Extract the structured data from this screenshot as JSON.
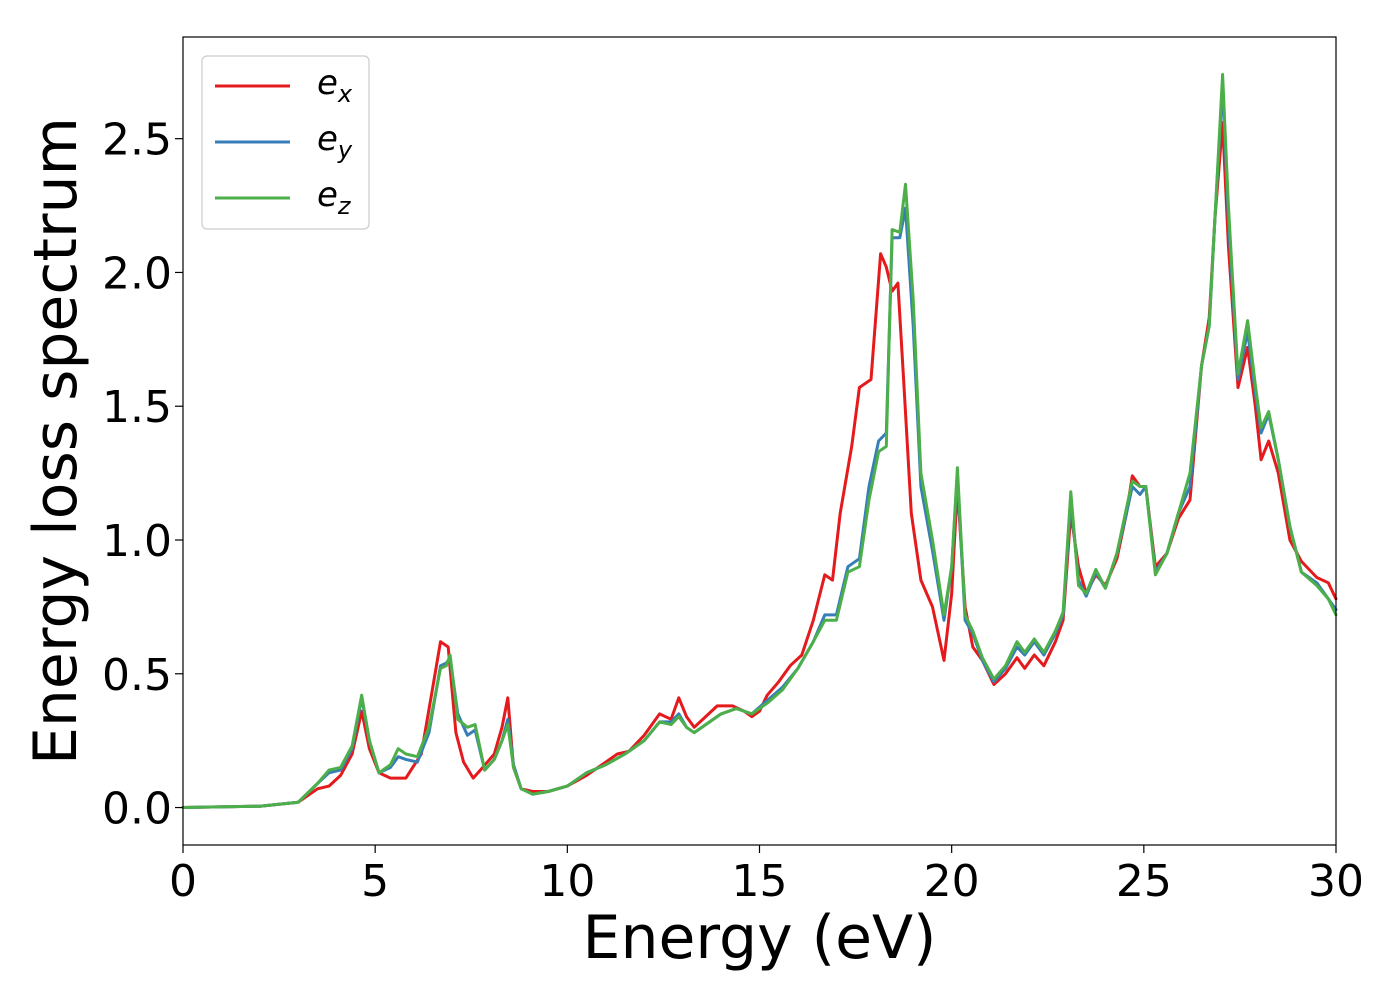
{
  "chart_data": {
    "type": "line",
    "title": "",
    "xlabel": "Energy (eV)",
    "ylabel": "Energy loss spectrum",
    "xlim": [
      0,
      30
    ],
    "ylim": [
      -0.14,
      2.88
    ],
    "xticks": [
      0,
      5,
      10,
      15,
      20,
      25,
      30
    ],
    "xtick_labels": [
      "0",
      "5",
      "10",
      "15",
      "20",
      "25",
      "30"
    ],
    "yticks": [
      0.0,
      0.5,
      1.0,
      1.5,
      2.0,
      2.5
    ],
    "ytick_labels": [
      "0.0",
      "0.5",
      "1.0",
      "1.5",
      "2.0",
      "2.5"
    ],
    "grid": false,
    "legend_position": "top-left",
    "series": [
      {
        "name": "e_x",
        "legend_base": "e",
        "legend_sub": "x",
        "color": "#e41a1c",
        "x": [
          0,
          2,
          3,
          3.5,
          3.8,
          4.1,
          4.4,
          4.65,
          4.85,
          5.1,
          5.4,
          5.8,
          6.2,
          6.5,
          6.7,
          6.9,
          7.1,
          7.3,
          7.55,
          7.8,
          8.1,
          8.3,
          8.45,
          8.6,
          8.8,
          9.1,
          9.5,
          10,
          10.5,
          11,
          11.3,
          11.6,
          12,
          12.4,
          12.7,
          12.9,
          13.1,
          13.3,
          13.6,
          13.9,
          14.3,
          14.6,
          14.8,
          15,
          15.2,
          15.5,
          15.8,
          16.1,
          16.4,
          16.7,
          16.9,
          17.1,
          17.4,
          17.6,
          17.9,
          18.15,
          18.3,
          18.45,
          18.6,
          18.75,
          18.95,
          19.2,
          19.5,
          19.8,
          20,
          20.15,
          20.35,
          20.55,
          20.8,
          21.1,
          21.4,
          21.7,
          21.9,
          22.15,
          22.4,
          22.7,
          22.9,
          23.1,
          23.3,
          23.5,
          23.75,
          24,
          24.3,
          24.55,
          24.7,
          24.9,
          25.05,
          25.3,
          25.6,
          25.9,
          26.2,
          26.5,
          26.7,
          26.85,
          27.05,
          27.2,
          27.45,
          27.7,
          27.9,
          28.05,
          28.25,
          28.5,
          28.8,
          29.1,
          29.5,
          29.8,
          30
        ],
        "y": [
          0.0,
          0.005,
          0.02,
          0.07,
          0.08,
          0.12,
          0.2,
          0.36,
          0.22,
          0.13,
          0.11,
          0.11,
          0.2,
          0.45,
          0.62,
          0.6,
          0.28,
          0.17,
          0.11,
          0.15,
          0.2,
          0.3,
          0.41,
          0.15,
          0.07,
          0.06,
          0.06,
          0.08,
          0.12,
          0.17,
          0.2,
          0.21,
          0.27,
          0.35,
          0.33,
          0.41,
          0.34,
          0.3,
          0.34,
          0.38,
          0.38,
          0.36,
          0.34,
          0.36,
          0.42,
          0.47,
          0.53,
          0.57,
          0.7,
          0.87,
          0.85,
          1.1,
          1.35,
          1.57,
          1.6,
          2.07,
          2.02,
          1.93,
          1.96,
          1.6,
          1.1,
          0.85,
          0.75,
          0.55,
          0.8,
          1.2,
          0.75,
          0.6,
          0.55,
          0.46,
          0.5,
          0.56,
          0.52,
          0.57,
          0.53,
          0.62,
          0.7,
          1.1,
          0.9,
          0.8,
          0.87,
          0.83,
          0.93,
          1.1,
          1.24,
          1.2,
          1.2,
          0.9,
          0.95,
          1.08,
          1.15,
          1.65,
          1.83,
          2.2,
          2.56,
          2.1,
          1.57,
          1.72,
          1.5,
          1.3,
          1.37,
          1.25,
          1.0,
          0.92,
          0.86,
          0.84,
          0.78
        ]
      },
      {
        "name": "e_y",
        "legend_base": "e",
        "legend_sub": "y",
        "color": "#377eb8",
        "x": [
          0,
          2,
          3,
          3.5,
          3.8,
          4.1,
          4.4,
          4.65,
          4.85,
          5.1,
          5.4,
          5.6,
          5.8,
          6.1,
          6.4,
          6.7,
          6.85,
          6.95,
          7.15,
          7.4,
          7.6,
          7.85,
          8.1,
          8.3,
          8.45,
          8.6,
          8.8,
          9.1,
          9.5,
          10,
          10.5,
          11,
          11.5,
          12,
          12.4,
          12.7,
          12.9,
          13.1,
          13.3,
          13.6,
          14,
          14.4,
          14.8,
          15.2,
          15.6,
          16,
          16.4,
          16.7,
          17,
          17.3,
          17.6,
          17.85,
          18.1,
          18.3,
          18.45,
          18.65,
          18.8,
          19.0,
          19.2,
          19.5,
          19.8,
          20,
          20.15,
          20.35,
          20.55,
          20.8,
          21.1,
          21.4,
          21.7,
          21.9,
          22.15,
          22.4,
          22.7,
          22.9,
          23.1,
          23.3,
          23.5,
          23.75,
          24,
          24.3,
          24.55,
          24.7,
          24.9,
          25.05,
          25.3,
          25.6,
          25.9,
          26.2,
          26.5,
          26.7,
          26.85,
          27.05,
          27.2,
          27.45,
          27.7,
          27.9,
          28.05,
          28.25,
          28.5,
          28.8,
          29.1,
          29.5,
          29.8,
          30
        ],
        "y": [
          0.0,
          0.005,
          0.02,
          0.09,
          0.13,
          0.14,
          0.22,
          0.41,
          0.25,
          0.13,
          0.15,
          0.19,
          0.18,
          0.17,
          0.28,
          0.53,
          0.54,
          0.56,
          0.35,
          0.27,
          0.29,
          0.14,
          0.18,
          0.25,
          0.33,
          0.16,
          0.07,
          0.05,
          0.06,
          0.08,
          0.13,
          0.16,
          0.2,
          0.25,
          0.32,
          0.32,
          0.35,
          0.3,
          0.28,
          0.31,
          0.35,
          0.37,
          0.35,
          0.4,
          0.45,
          0.52,
          0.62,
          0.72,
          0.72,
          0.9,
          0.93,
          1.2,
          1.37,
          1.4,
          2.13,
          2.13,
          2.24,
          1.8,
          1.2,
          0.96,
          0.7,
          0.9,
          1.25,
          0.7,
          0.65,
          0.55,
          0.47,
          0.52,
          0.6,
          0.57,
          0.62,
          0.57,
          0.65,
          0.72,
          1.15,
          0.85,
          0.79,
          0.88,
          0.82,
          0.95,
          1.1,
          1.2,
          1.17,
          1.2,
          0.88,
          0.95,
          1.1,
          1.2,
          1.65,
          1.8,
          2.2,
          2.7,
          2.2,
          1.6,
          1.78,
          1.55,
          1.4,
          1.47,
          1.3,
          1.05,
          0.88,
          0.84,
          0.78,
          0.74
        ]
      },
      {
        "name": "e_z",
        "legend_base": "e",
        "legend_sub": "z",
        "color": "#4daf4a",
        "x": [
          0,
          2,
          3,
          3.5,
          3.8,
          4.1,
          4.4,
          4.65,
          4.85,
          5.1,
          5.4,
          5.6,
          5.8,
          6.1,
          6.4,
          6.7,
          6.85,
          6.95,
          7.15,
          7.4,
          7.6,
          7.85,
          8.1,
          8.3,
          8.45,
          8.6,
          8.8,
          9.1,
          9.5,
          10,
          10.5,
          11,
          11.5,
          12,
          12.4,
          12.7,
          12.9,
          13.1,
          13.3,
          13.6,
          14,
          14.4,
          14.8,
          15.2,
          15.6,
          16,
          16.4,
          16.7,
          17,
          17.3,
          17.6,
          17.85,
          18.1,
          18.3,
          18.45,
          18.65,
          18.8,
          19.0,
          19.2,
          19.5,
          19.8,
          20,
          20.15,
          20.35,
          20.55,
          20.8,
          21.1,
          21.4,
          21.7,
          21.9,
          22.15,
          22.4,
          22.7,
          22.9,
          23.1,
          23.3,
          23.5,
          23.75,
          24,
          24.3,
          24.55,
          24.7,
          24.9,
          25.05,
          25.3,
          25.6,
          25.9,
          26.2,
          26.5,
          26.7,
          26.85,
          27.05,
          27.2,
          27.45,
          27.7,
          27.9,
          28.05,
          28.25,
          28.5,
          28.8,
          29.1,
          29.5,
          29.8,
          30
        ],
        "y": [
          0.0,
          0.005,
          0.02,
          0.09,
          0.14,
          0.15,
          0.23,
          0.42,
          0.25,
          0.13,
          0.16,
          0.22,
          0.2,
          0.19,
          0.3,
          0.52,
          0.53,
          0.57,
          0.33,
          0.3,
          0.31,
          0.14,
          0.18,
          0.25,
          0.31,
          0.15,
          0.07,
          0.05,
          0.06,
          0.08,
          0.13,
          0.16,
          0.2,
          0.25,
          0.32,
          0.31,
          0.34,
          0.3,
          0.28,
          0.31,
          0.35,
          0.37,
          0.35,
          0.39,
          0.44,
          0.52,
          0.62,
          0.7,
          0.7,
          0.88,
          0.9,
          1.15,
          1.33,
          1.35,
          2.16,
          2.15,
          2.33,
          1.9,
          1.25,
          1.0,
          0.72,
          0.9,
          1.27,
          0.72,
          0.66,
          0.56,
          0.48,
          0.53,
          0.62,
          0.58,
          0.63,
          0.58,
          0.66,
          0.73,
          1.18,
          0.83,
          0.8,
          0.89,
          0.82,
          0.95,
          1.12,
          1.22,
          1.2,
          1.2,
          0.87,
          0.95,
          1.1,
          1.25,
          1.65,
          1.8,
          2.2,
          2.74,
          2.25,
          1.62,
          1.82,
          1.58,
          1.42,
          1.48,
          1.3,
          1.05,
          0.88,
          0.83,
          0.78,
          0.72
        ]
      }
    ]
  }
}
